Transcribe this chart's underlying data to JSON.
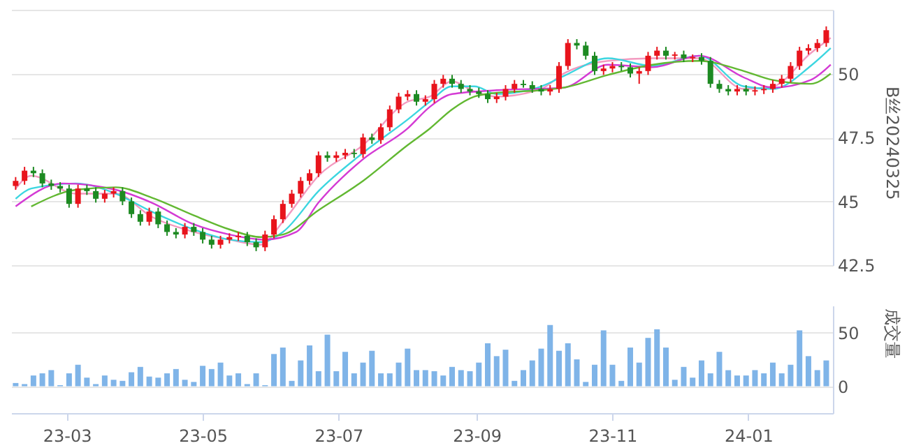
{
  "chart_data": [
    {
      "type": "candlestick",
      "ylabel": "B丝20240325",
      "xlim": [
        "2023-02-04",
        "2024-02-08"
      ],
      "ylim": [
        42.5,
        52.5
      ],
      "yticks": [
        42.5,
        45,
        47.5,
        50,
        {
          "value": 52.5,
          "label": null
        }
      ],
      "grid": "y",
      "tick_labels": "y",
      "x": [
        "2023-02-06",
        "2023-02-10",
        "2023-02-14",
        "2023-02-18",
        "2023-02-22",
        "2023-02-26",
        "2023-03-02",
        "2023-03-06",
        "2023-03-10",
        "2023-03-14",
        "2023-03-18",
        "2023-03-22",
        "2023-03-26",
        "2023-03-30",
        "2023-04-03",
        "2023-04-07",
        "2023-04-11",
        "2023-04-15",
        "2023-04-19",
        "2023-04-23",
        "2023-04-27",
        "2023-05-01",
        "2023-05-05",
        "2023-05-09",
        "2023-05-13",
        "2023-05-17",
        "2023-05-21",
        "2023-05-25",
        "2023-05-29",
        "2023-06-02",
        "2023-06-06",
        "2023-06-10",
        "2023-06-14",
        "2023-06-18",
        "2023-06-22",
        "2023-06-26",
        "2023-06-30",
        "2023-07-04",
        "2023-07-08",
        "2023-07-12",
        "2023-07-16",
        "2023-07-20",
        "2023-07-24",
        "2023-07-28",
        "2023-08-01",
        "2023-08-05",
        "2023-08-09",
        "2023-08-13",
        "2023-08-17",
        "2023-08-21",
        "2023-08-25",
        "2023-08-29",
        "2023-09-02",
        "2023-09-06",
        "2023-09-10",
        "2023-09-14",
        "2023-09-18",
        "2023-09-22",
        "2023-09-26",
        "2023-09-30",
        "2023-10-04",
        "2023-10-08",
        "2023-10-12",
        "2023-10-16",
        "2023-10-20",
        "2023-10-24",
        "2023-10-28",
        "2023-11-01",
        "2023-11-05",
        "2023-11-09",
        "2023-11-13",
        "2023-11-17",
        "2023-11-21",
        "2023-11-25",
        "2023-11-29",
        "2023-12-03",
        "2023-12-07",
        "2023-12-11",
        "2023-12-15",
        "2023-12-19",
        "2023-12-23",
        "2023-12-27",
        "2023-12-31",
        "2024-01-04",
        "2024-01-08",
        "2024-01-12",
        "2024-01-16",
        "2024-01-20",
        "2024-01-24",
        "2024-01-28",
        "2024-02-01",
        "2024-02-05"
      ],
      "ohlc": [
        [
          45.6,
          45.95,
          45.45,
          45.8
        ],
        [
          45.8,
          46.35,
          45.65,
          46.2
        ],
        [
          46.2,
          46.35,
          45.95,
          46.1
        ],
        [
          46.1,
          46.25,
          45.55,
          45.7
        ],
        [
          45.7,
          45.85,
          45.45,
          45.6
        ],
        [
          45.6,
          45.75,
          45.35,
          45.5
        ],
        [
          45.5,
          45.65,
          44.75,
          44.9
        ],
        [
          44.9,
          45.65,
          44.75,
          45.5
        ],
        [
          45.5,
          45.65,
          45.25,
          45.4
        ],
        [
          45.4,
          45.55,
          44.95,
          45.1
        ],
        [
          45.1,
          45.45,
          44.95,
          45.3
        ],
        [
          45.3,
          45.55,
          45.15,
          45.4
        ],
        [
          45.4,
          45.55,
          44.85,
          45.0
        ],
        [
          45.0,
          45.15,
          44.35,
          44.5
        ],
        [
          44.5,
          44.65,
          44.05,
          44.2
        ],
        [
          44.2,
          44.75,
          44.05,
          44.6
        ],
        [
          44.6,
          44.75,
          43.95,
          44.1
        ],
        [
          44.1,
          44.25,
          43.65,
          43.8
        ],
        [
          43.8,
          43.95,
          43.55,
          43.7
        ],
        [
          43.7,
          44.15,
          43.55,
          44.0
        ],
        [
          44.0,
          44.15,
          43.65,
          43.8
        ],
        [
          43.8,
          43.95,
          43.35,
          43.5
        ],
        [
          43.5,
          43.65,
          43.15,
          43.3
        ],
        [
          43.3,
          43.65,
          43.15,
          43.5
        ],
        [
          43.5,
          43.75,
          43.35,
          43.6
        ],
        [
          43.6,
          43.8,
          43.45,
          43.65
        ],
        [
          43.65,
          43.8,
          43.25,
          43.4
        ],
        [
          43.4,
          43.55,
          43.05,
          43.2
        ],
        [
          43.2,
          43.85,
          43.05,
          43.7
        ],
        [
          43.7,
          44.45,
          43.55,
          44.3
        ],
        [
          44.3,
          45.05,
          44.15,
          44.9
        ],
        [
          44.9,
          45.45,
          44.75,
          45.3
        ],
        [
          45.3,
          45.95,
          45.15,
          45.8
        ],
        [
          45.8,
          46.25,
          45.65,
          46.1
        ],
        [
          46.1,
          46.95,
          45.95,
          46.8
        ],
        [
          46.8,
          46.95,
          46.55,
          46.7
        ],
        [
          46.7,
          46.95,
          46.55,
          46.8
        ],
        [
          46.8,
          47.05,
          46.65,
          46.9
        ],
        [
          46.9,
          47.05,
          46.7,
          46.85
        ],
        [
          46.85,
          47.65,
          46.7,
          47.5
        ],
        [
          47.5,
          47.65,
          47.25,
          47.4
        ],
        [
          47.4,
          48.05,
          47.25,
          47.9
        ],
        [
          47.9,
          48.75,
          47.75,
          48.6
        ],
        [
          48.6,
          49.25,
          48.45,
          49.1
        ],
        [
          49.1,
          49.35,
          48.95,
          49.2
        ],
        [
          49.2,
          49.35,
          48.75,
          48.9
        ],
        [
          48.9,
          49.15,
          48.75,
          49.0
        ],
        [
          49.0,
          49.75,
          48.85,
          49.6
        ],
        [
          49.6,
          49.95,
          49.45,
          49.8
        ],
        [
          49.8,
          49.95,
          49.45,
          49.6
        ],
        [
          49.6,
          49.75,
          49.25,
          49.4
        ],
        [
          49.4,
          49.55,
          49.15,
          49.3
        ],
        [
          49.3,
          49.45,
          49.05,
          49.2
        ],
        [
          49.2,
          49.35,
          48.85,
          49.0
        ],
        [
          49.0,
          49.25,
          48.85,
          49.1
        ],
        [
          49.1,
          49.55,
          48.95,
          49.4
        ],
        [
          49.4,
          49.75,
          49.25,
          49.6
        ],
        [
          49.6,
          49.75,
          49.45,
          49.55
        ],
        [
          49.55,
          49.7,
          49.25,
          49.4
        ],
        [
          49.4,
          49.55,
          49.15,
          49.3
        ],
        [
          49.3,
          49.55,
          49.15,
          49.4
        ],
        [
          49.4,
          50.45,
          49.25,
          50.3
        ],
        [
          50.3,
          51.35,
          50.15,
          51.2
        ],
        [
          51.2,
          51.35,
          50.95,
          51.1
        ],
        [
          51.1,
          51.25,
          50.55,
          50.7
        ],
        [
          50.7,
          50.85,
          49.95,
          50.1
        ],
        [
          50.1,
          50.35,
          49.95,
          50.2
        ],
        [
          50.2,
          50.45,
          50.05,
          50.3
        ],
        [
          50.3,
          50.45,
          50.1,
          50.25
        ],
        [
          50.25,
          50.4,
          49.85,
          50.0
        ],
        [
          50.0,
          50.25,
          49.6,
          50.1
        ],
        [
          50.1,
          50.85,
          49.95,
          50.7
        ],
        [
          50.7,
          51.05,
          50.55,
          50.9
        ],
        [
          50.9,
          51.05,
          50.55,
          50.7
        ],
        [
          50.7,
          50.85,
          50.55,
          50.75
        ],
        [
          50.75,
          50.9,
          50.45,
          50.6
        ],
        [
          50.6,
          50.75,
          50.45,
          50.65
        ],
        [
          50.65,
          50.8,
          50.35,
          50.5
        ],
        [
          50.5,
          50.65,
          49.45,
          49.6
        ],
        [
          49.6,
          49.75,
          49.25,
          49.4
        ],
        [
          49.4,
          49.55,
          49.15,
          49.3
        ],
        [
          49.3,
          49.55,
          49.15,
          49.4
        ],
        [
          49.4,
          49.55,
          49.15,
          49.3
        ],
        [
          49.3,
          49.5,
          49.15,
          49.35
        ],
        [
          49.35,
          49.55,
          49.2,
          49.4
        ],
        [
          49.4,
          49.75,
          49.25,
          49.6
        ],
        [
          49.6,
          49.95,
          49.45,
          49.8
        ],
        [
          49.8,
          50.45,
          49.65,
          50.3
        ],
        [
          50.3,
          51.05,
          50.15,
          50.9
        ],
        [
          50.9,
          51.15,
          50.75,
          51.0
        ],
        [
          51.0,
          51.35,
          50.85,
          51.2
        ],
        [
          51.2,
          51.85,
          51.05,
          51.7
        ]
      ],
      "colors": [
        "#e8141c",
        "#e8141c",
        "#1d8a22",
        "#1d8a22",
        "#1d8a22",
        "#1d8a22",
        "#1d8a22",
        "#e8141c",
        "#1d8a22",
        "#1d8a22",
        "#e8141c",
        "#e8141c",
        "#1d8a22",
        "#1d8a22",
        "#1d8a22",
        "#e8141c",
        "#1d8a22",
        "#1d8a22",
        "#1d8a22",
        "#e8141c",
        "#1d8a22",
        "#1d8a22",
        "#1d8a22",
        "#e8141c",
        "#e8141c",
        "#e8141c",
        "#1d8a22",
        "#1d8a22",
        "#e8141c",
        "#e8141c",
        "#e8141c",
        "#e8141c",
        "#e8141c",
        "#e8141c",
        "#e8141c",
        "#1d8a22",
        "#e8141c",
        "#e8141c",
        "#1d8a22",
        "#e8141c",
        "#1d8a22",
        "#e8141c",
        "#e8141c",
        "#e8141c",
        "#e8141c",
        "#1d8a22",
        "#e8141c",
        "#e8141c",
        "#e8141c",
        "#1d8a22",
        "#1d8a22",
        "#1d8a22",
        "#1d8a22",
        "#1d8a22",
        "#e8141c",
        "#e8141c",
        "#e8141c",
        "#1d8a22",
        "#1d8a22",
        "#1d8a22",
        "#e8141c",
        "#e8141c",
        "#e8141c",
        "#1d8a22",
        "#1d8a22",
        "#1d8a22",
        "#e8141c",
        "#e8141c",
        "#1d8a22",
        "#1d8a22",
        "#e8141c",
        "#e8141c",
        "#e8141c",
        "#1d8a22",
        "#e8141c",
        "#1d8a22",
        "#e8141c",
        "#1d8a22",
        "#1d8a22",
        "#1d8a22",
        "#1d8a22",
        "#e8141c",
        "#1d8a22",
        "#e8141c",
        "#e8141c",
        "#e8141c",
        "#e8141c",
        "#e8141c",
        "#e8141c",
        "#e8141c",
        "#e8141c",
        "#e8141c"
      ],
      "series": [
        {
          "type": "line",
          "color": "#f39ac0",
          "x": [
            "2023-02-06",
            "2023-02-13",
            "2023-03-05",
            "2023-03-23",
            "2023-04-08",
            "2023-04-27",
            "2023-05-13",
            "2023-05-27",
            "2023-06-06",
            "2023-06-22",
            "2023-07-12",
            "2023-08-01",
            "2023-08-11",
            "2023-08-21",
            "2023-08-31",
            "2023-09-10",
            "2023-09-30",
            "2023-10-10",
            "2023-10-30",
            "2023-11-19",
            "2023-12-10",
            "2023-12-30",
            "2024-01-12",
            "2024-01-29",
            "2024-02-07"
          ],
          "values": [
            45.5,
            46.0,
            45.3,
            45.3,
            44.4,
            43.8,
            43.5,
            43.3,
            44.2,
            46.0,
            47.2,
            48.9,
            49.1,
            49.7,
            49.3,
            49.1,
            49.4,
            50.0,
            50.5,
            50.6,
            50.6,
            49.4,
            49.5,
            50.8,
            51.4
          ]
        },
        {
          "type": "line",
          "color": "#3cd6e0",
          "x": [
            "2023-02-06",
            "2023-02-13",
            "2023-03-05",
            "2023-03-23",
            "2023-04-08",
            "2023-04-27",
            "2023-05-13",
            "2023-05-27",
            "2023-06-06",
            "2023-06-22",
            "2023-07-12",
            "2023-08-01",
            "2023-08-11",
            "2023-08-21",
            "2023-08-31",
            "2023-09-10",
            "2023-09-30",
            "2023-10-10",
            "2023-10-30",
            "2023-11-19",
            "2023-12-10",
            "2023-12-30",
            "2024-01-12",
            "2024-01-29",
            "2024-02-07"
          ],
          "values": [
            45.1,
            45.5,
            45.7,
            45.3,
            44.6,
            43.9,
            43.5,
            43.4,
            43.8,
            45.4,
            46.9,
            48.2,
            48.9,
            49.5,
            49.5,
            49.2,
            49.5,
            49.9,
            50.6,
            50.3,
            50.7,
            49.5,
            49.4,
            50.3,
            51.0
          ]
        },
        {
          "type": "line",
          "color": "#d43ad4",
          "x": [
            "2023-02-06",
            "2023-02-27",
            "2023-03-23",
            "2023-04-08",
            "2023-04-27",
            "2023-05-13",
            "2023-05-29",
            "2023-06-12",
            "2023-06-22",
            "2023-07-12",
            "2023-08-01",
            "2023-08-11",
            "2023-08-21",
            "2023-09-10",
            "2023-10-10",
            "2023-10-30",
            "2023-11-19",
            "2023-12-10",
            "2023-12-30",
            "2024-01-12",
            "2024-01-29",
            "2024-02-07"
          ],
          "values": [
            44.8,
            45.7,
            45.45,
            44.95,
            44.1,
            43.7,
            43.5,
            43.8,
            44.95,
            46.65,
            47.85,
            48.7,
            49.2,
            49.35,
            49.45,
            50.35,
            50.25,
            50.7,
            49.85,
            49.45,
            49.75,
            50.35
          ]
        },
        {
          "type": "line",
          "color": "#62b832",
          "x": [
            "2023-02-13",
            "2023-03-05",
            "2023-03-23",
            "2023-04-08",
            "2023-04-27",
            "2023-05-13",
            "2023-05-27",
            "2023-06-06",
            "2023-06-22",
            "2023-07-12",
            "2023-08-01",
            "2023-08-11",
            "2023-08-21",
            "2023-08-31",
            "2023-09-10",
            "2023-09-30",
            "2023-10-10",
            "2023-10-30",
            "2023-11-19",
            "2023-12-10",
            "2023-12-30",
            "2024-01-12",
            "2024-01-29",
            "2024-02-07"
          ],
          "values": [
            44.8,
            45.45,
            45.55,
            45.15,
            44.45,
            43.9,
            43.6,
            43.7,
            44.65,
            45.8,
            47.2,
            47.85,
            48.6,
            49.1,
            49.25,
            49.35,
            49.45,
            49.95,
            50.35,
            50.5,
            50.1,
            49.75,
            49.6,
            50.0
          ]
        }
      ]
    },
    {
      "type": "bar",
      "ylabel": "成交量",
      "color": "#7fb4e8",
      "xlim": [
        "2023-02-04",
        "2024-02-08"
      ],
      "ylim": [
        -25,
        75
      ],
      "yticks": [
        0,
        50
      ],
      "grid": "y",
      "xticks": [
        {
          "value": "2023-03",
          "label": "23-03"
        },
        {
          "value": "2023-05",
          "label": "23-05"
        },
        {
          "value": "2023-07",
          "label": "23-07"
        },
        {
          "value": "2023-09",
          "label": "23-09"
        },
        {
          "value": "2023-11",
          "label": "23-11"
        },
        {
          "value": "2024-01",
          "label": "24-01"
        }
      ],
      "x": [
        "2023-02-06",
        "2023-02-10",
        "2023-02-14",
        "2023-02-18",
        "2023-02-22",
        "2023-02-26",
        "2023-03-02",
        "2023-03-06",
        "2023-03-10",
        "2023-03-14",
        "2023-03-18",
        "2023-03-22",
        "2023-03-26",
        "2023-03-30",
        "2023-04-03",
        "2023-04-07",
        "2023-04-11",
        "2023-04-15",
        "2023-04-19",
        "2023-04-23",
        "2023-04-27",
        "2023-05-01",
        "2023-05-05",
        "2023-05-09",
        "2023-05-13",
        "2023-05-17",
        "2023-05-21",
        "2023-05-25",
        "2023-05-29",
        "2023-06-02",
        "2023-06-06",
        "2023-06-10",
        "2023-06-14",
        "2023-06-18",
        "2023-06-22",
        "2023-06-26",
        "2023-06-30",
        "2023-07-04",
        "2023-07-08",
        "2023-07-12",
        "2023-07-16",
        "2023-07-20",
        "2023-07-24",
        "2023-07-28",
        "2023-08-01",
        "2023-08-05",
        "2023-08-09",
        "2023-08-13",
        "2023-08-17",
        "2023-08-21",
        "2023-08-25",
        "2023-08-29",
        "2023-09-02",
        "2023-09-06",
        "2023-09-10",
        "2023-09-14",
        "2023-09-18",
        "2023-09-22",
        "2023-09-26",
        "2023-09-30",
        "2023-10-04",
        "2023-10-08",
        "2023-10-12",
        "2023-10-16",
        "2023-10-20",
        "2023-10-24",
        "2023-10-28",
        "2023-11-01",
        "2023-11-05",
        "2023-11-09",
        "2023-11-13",
        "2023-11-17",
        "2023-11-21",
        "2023-11-25",
        "2023-11-29",
        "2023-12-03",
        "2023-12-07",
        "2023-12-11",
        "2023-12-15",
        "2023-12-19",
        "2023-12-23",
        "2023-12-27",
        "2023-12-31",
        "2024-01-04",
        "2024-01-08",
        "2024-01-12",
        "2024-01-16",
        "2024-01-20",
        "2024-01-24",
        "2024-01-28",
        "2024-02-01",
        "2024-02-05"
      ],
      "values": [
        3,
        2,
        10,
        12,
        15,
        1,
        12,
        20,
        8,
        2,
        10,
        6,
        5,
        13,
        18,
        9,
        8,
        12,
        16,
        6,
        4,
        19,
        16,
        22,
        10,
        12,
        2,
        12,
        1,
        30,
        36,
        5,
        24,
        38,
        14,
        48,
        14,
        32,
        12,
        22,
        33,
        12,
        12,
        22,
        35,
        15,
        15,
        14,
        10,
        18,
        15,
        14,
        22,
        40,
        28,
        34,
        5,
        15,
        24,
        35,
        57,
        33,
        40,
        25,
        4,
        20,
        52,
        20,
        5,
        36,
        22,
        45,
        53,
        36,
        6,
        18,
        8,
        24,
        12,
        32,
        15,
        10,
        10,
        15,
        12,
        22,
        12,
        20,
        52,
        28,
        15,
        24
      ]
    }
  ]
}
